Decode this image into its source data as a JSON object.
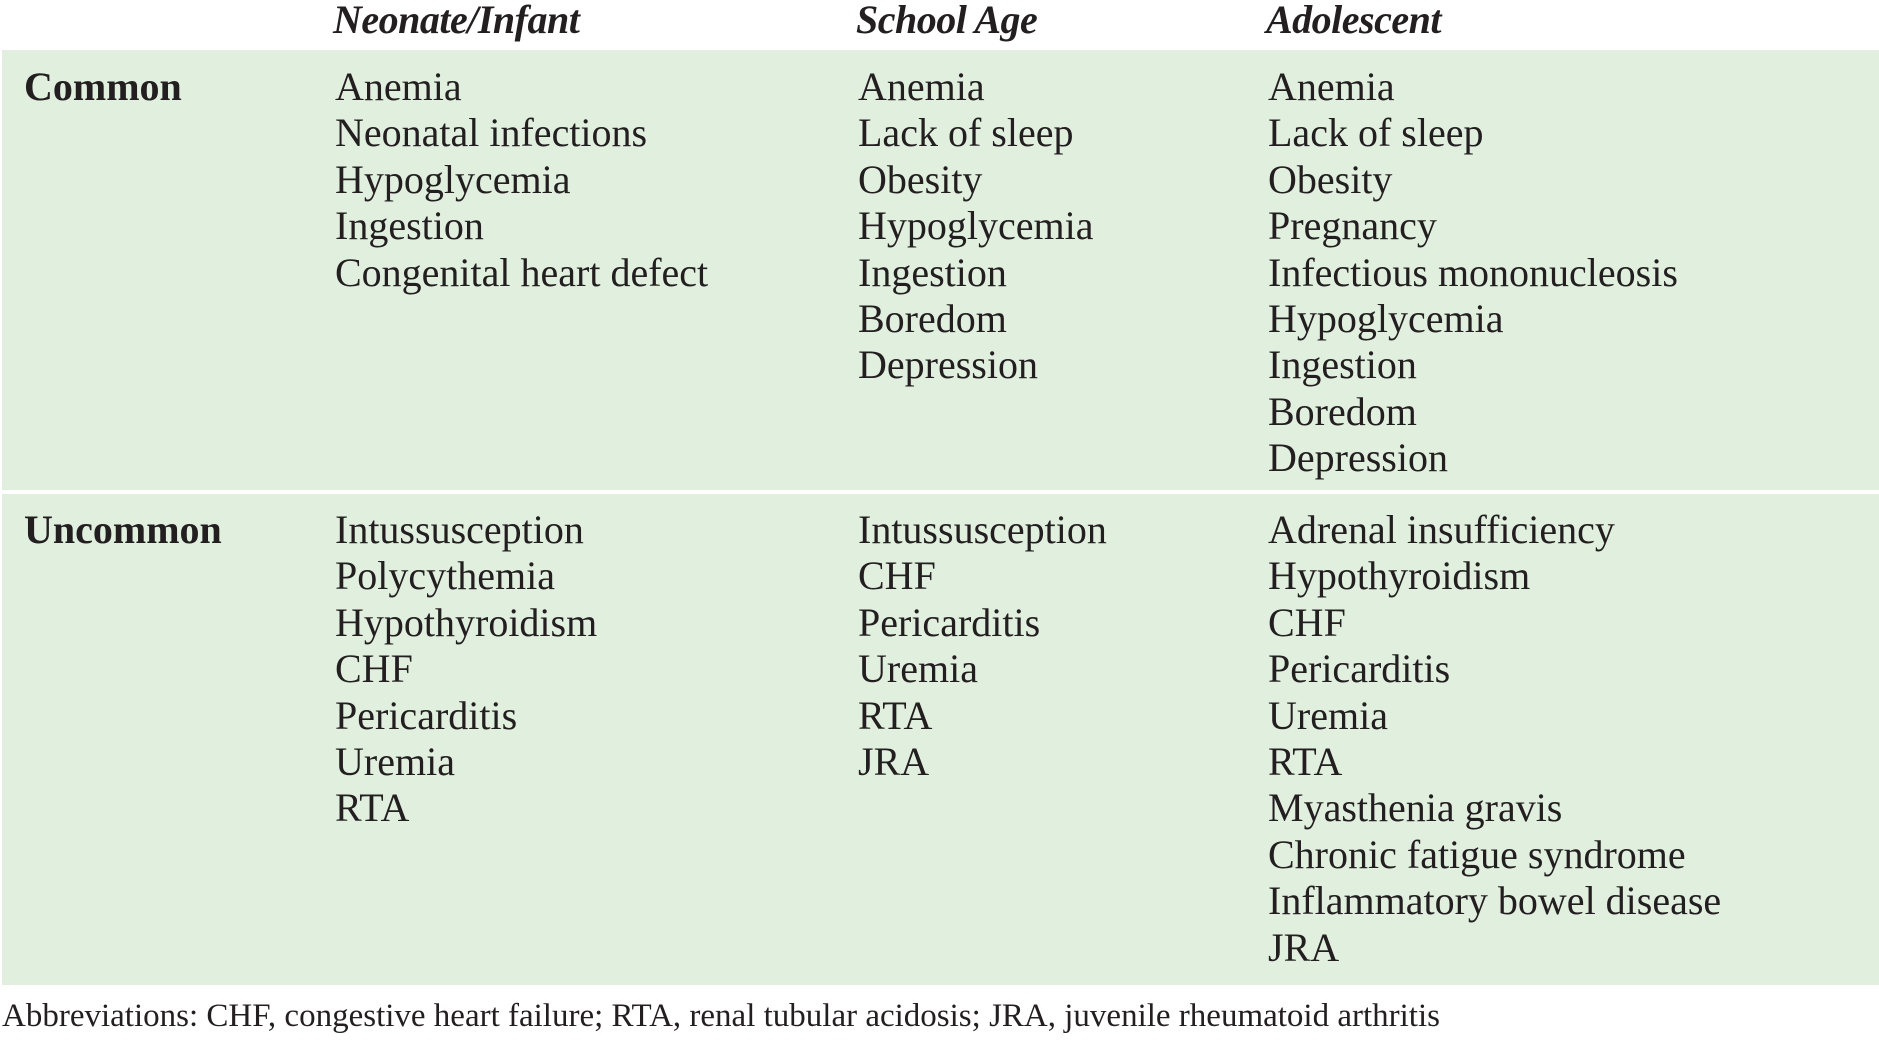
{
  "table": {
    "columns": [
      "",
      "Neonate/Infant",
      "School Age",
      "Adolescent"
    ],
    "rows": [
      {
        "label": "Common",
        "neonate_infant": [
          "Anemia",
          "Neonatal infections",
          "Hypoglycemia",
          "Ingestion",
          "Congenital heart defect"
        ],
        "school_age": [
          "Anemia",
          "Lack of sleep",
          "Obesity",
          "Hypoglycemia",
          "Ingestion",
          "Boredom",
          "Depression"
        ],
        "adolescent": [
          "Anemia",
          "Lack of sleep",
          "Obesity",
          "Pregnancy",
          "Infectious mononucleosis",
          "Hypoglycemia",
          "Ingestion",
          "Boredom",
          "Depression"
        ]
      },
      {
        "label": "Uncommon",
        "neonate_infant": [
          "Intussusception",
          "Polycythemia",
          "Hypothyroidism",
          "CHF",
          "Pericarditis",
          "Uremia",
          "RTA"
        ],
        "school_age": [
          "Intussusception",
          "CHF",
          "Pericarditis",
          "Uremia",
          "RTA",
          "JRA"
        ],
        "adolescent": [
          "Adrenal insufficiency",
          "Hypothyroidism",
          "CHF",
          "Pericarditis",
          "Uremia",
          "RTA",
          "Myasthenia gravis",
          "Chronic fatigue syndrome",
          "Inflammatory bowel disease",
          "JRA"
        ]
      }
    ]
  },
  "footnote": "Abbreviations: CHF, congestive heart failure; RTA, renal tubular acidosis; JRA, juvenile rheumatoid arthritis",
  "colors": {
    "band": "#e1efdf",
    "text": "#231f20",
    "background": "#ffffff"
  }
}
